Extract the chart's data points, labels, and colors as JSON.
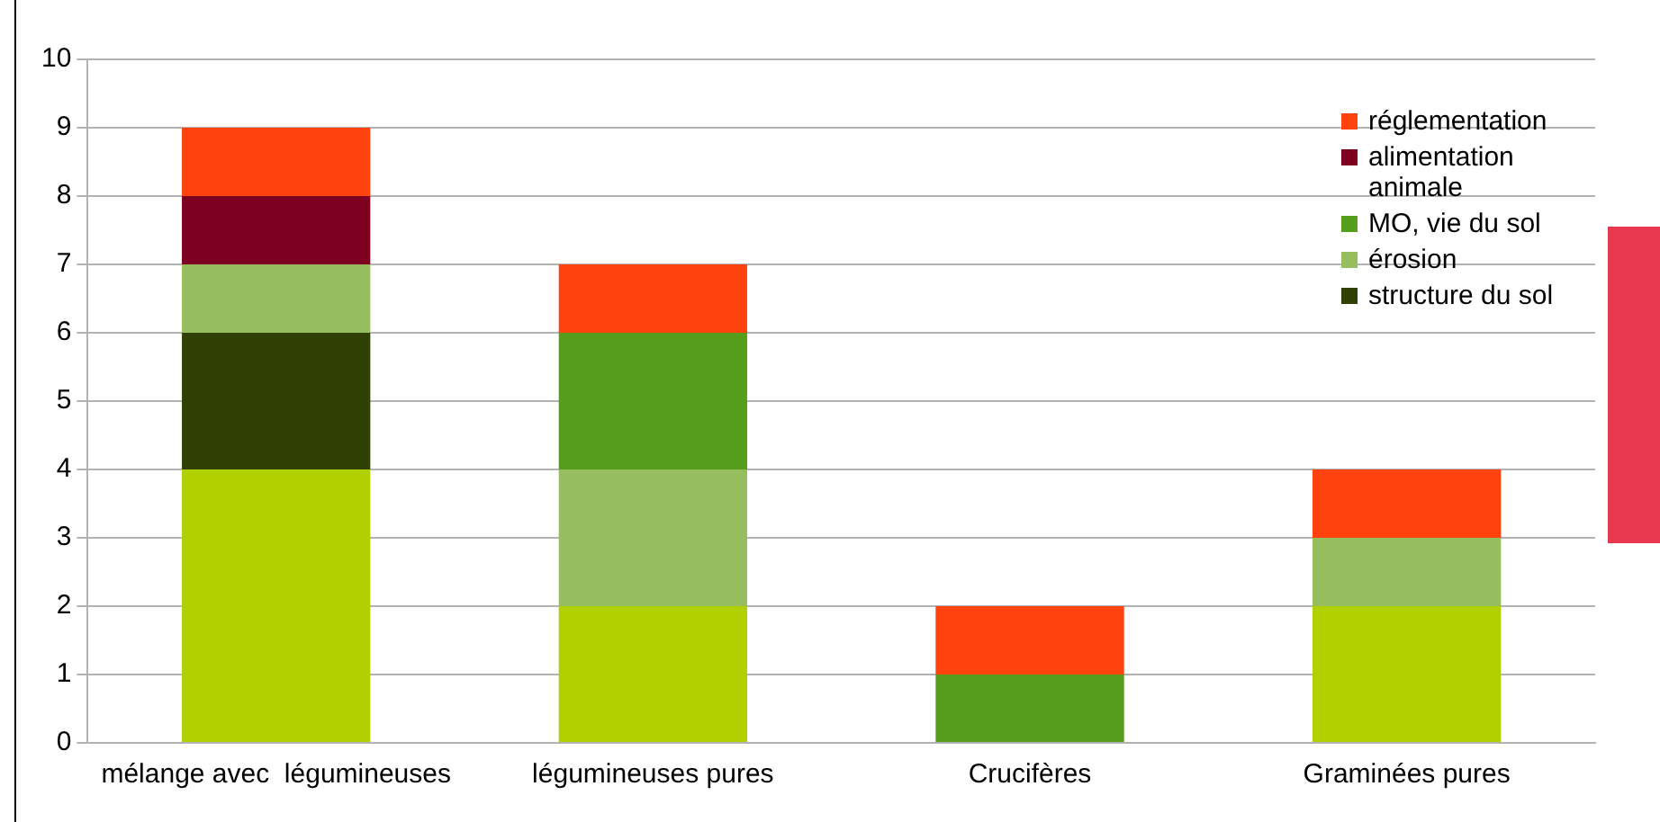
{
  "chart_data": {
    "type": "bar",
    "stacked": true,
    "categories": [
      "mélange avec  légumineuses",
      "légumineuses pures",
      "Crucifères",
      "Graminées pures"
    ],
    "series": [
      {
        "color": "#b0d000",
        "values": [
          4,
          2,
          0,
          2
        ]
      },
      {
        "name": "structure du sol",
        "color": "#314004",
        "values": [
          2,
          0,
          0,
          0
        ]
      },
      {
        "name": "érosion",
        "color": "#97be5e",
        "values": [
          1,
          2,
          0,
          1
        ]
      },
      {
        "name": "MO, vie du sol",
        "color": "#579d1c",
        "values": [
          0,
          2,
          1,
          0
        ]
      },
      {
        "name": "alimentation animale",
        "color": "#7e0021",
        "values": [
          1,
          0,
          0,
          0
        ]
      },
      {
        "name": "réglementation",
        "color": "#ff420e",
        "values": [
          1,
          1,
          1,
          1
        ]
      }
    ],
    "ylim": [
      0,
      10
    ],
    "yticks": [
      0,
      1,
      2,
      3,
      4,
      5,
      6,
      7,
      8,
      9,
      10
    ],
    "grid": "y",
    "legend": "top right"
  }
}
